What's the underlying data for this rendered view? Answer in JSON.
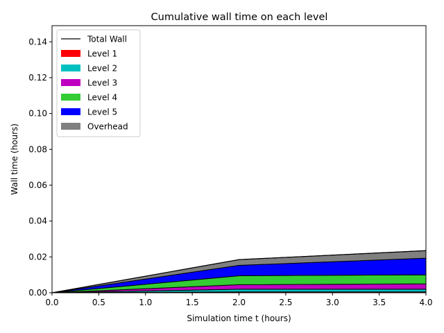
{
  "chart_data": {
    "type": "area",
    "title": "Cumulative wall time on each level",
    "xlabel": "Simulation time t (hours)",
    "ylabel": "Wall time (hours)",
    "xlim": [
      0,
      4
    ],
    "ylim": [
      0,
      0.149
    ],
    "x_ticks": [
      "0.0",
      "0.5",
      "1.0",
      "1.5",
      "2.0",
      "2.5",
      "3.0",
      "3.5",
      "4.0"
    ],
    "y_ticks": [
      "0.00",
      "0.02",
      "0.04",
      "0.06",
      "0.08",
      "0.10",
      "0.12",
      "0.14"
    ],
    "grid": false,
    "legend_position": "top-left",
    "x": [
      0,
      2,
      4
    ],
    "stack_order": [
      "Level 1",
      "Level 2",
      "Level 3",
      "Level 4",
      "Level 5",
      "Overhead"
    ],
    "series": [
      {
        "name": "Level 1",
        "color": "#ff0000",
        "values": [
          0,
          0.0005,
          0.0005
        ]
      },
      {
        "name": "Level 2",
        "color": "#00bfbf",
        "values": [
          0,
          0.0015,
          0.0015
        ]
      },
      {
        "name": "Level 3",
        "color": "#bf00bf",
        "values": [
          0,
          0.0025,
          0.003
        ]
      },
      {
        "name": "Level 4",
        "color": "#33cc33",
        "values": [
          0,
          0.005,
          0.005
        ]
      },
      {
        "name": "Level 5",
        "color": "#0000ff",
        "values": [
          0,
          0.0058,
          0.0093
        ]
      },
      {
        "name": "Overhead",
        "color": "#808080",
        "values": [
          0,
          0.0032,
          0.0042
        ]
      }
    ],
    "total_wall": {
      "name": "Total Wall",
      "color": "#000000",
      "values": [
        0,
        0.0185,
        0.0235
      ]
    },
    "legend": [
      "Total Wall",
      "Level 1",
      "Level 2",
      "Level 3",
      "Level 4",
      "Level 5",
      "Overhead"
    ]
  }
}
